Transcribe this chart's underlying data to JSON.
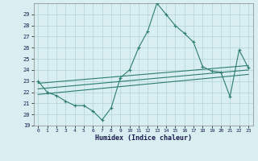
{
  "x_data": [
    0,
    1,
    2,
    3,
    4,
    5,
    6,
    7,
    8,
    9,
    10,
    11,
    12,
    13,
    14,
    15,
    16,
    17,
    18,
    19,
    20,
    21,
    22,
    23
  ],
  "y_main": [
    23,
    22,
    21.7,
    21.2,
    20.8,
    20.8,
    20.3,
    19.5,
    20.6,
    23.3,
    24.0,
    26.0,
    27.5,
    30.0,
    29.0,
    28.0,
    27.3,
    26.5,
    24.3,
    23.9,
    23.8,
    21.6,
    25.8,
    24.2
  ],
  "trend1_x": [
    0,
    23
  ],
  "trend1_y": [
    22.8,
    24.4
  ],
  "trend2_x": [
    0,
    23
  ],
  "trend2_y": [
    22.3,
    24.0
  ],
  "trend3_x": [
    0,
    23
  ],
  "trend3_y": [
    21.8,
    23.6
  ],
  "line_color": "#2d7d6e",
  "bg_color": "#d8eef0",
  "grid_color": "#b8d8dc",
  "xlabel": "Humidex (Indice chaleur)",
  "ylim": [
    19,
    30
  ],
  "xlim": [
    -0.5,
    23.5
  ],
  "yticks": [
    19,
    20,
    21,
    22,
    23,
    24,
    25,
    26,
    27,
    28,
    29
  ],
  "xticks": [
    0,
    1,
    2,
    3,
    4,
    5,
    6,
    7,
    8,
    9,
    10,
    11,
    12,
    13,
    14,
    15,
    16,
    17,
    18,
    19,
    20,
    21,
    22,
    23
  ]
}
